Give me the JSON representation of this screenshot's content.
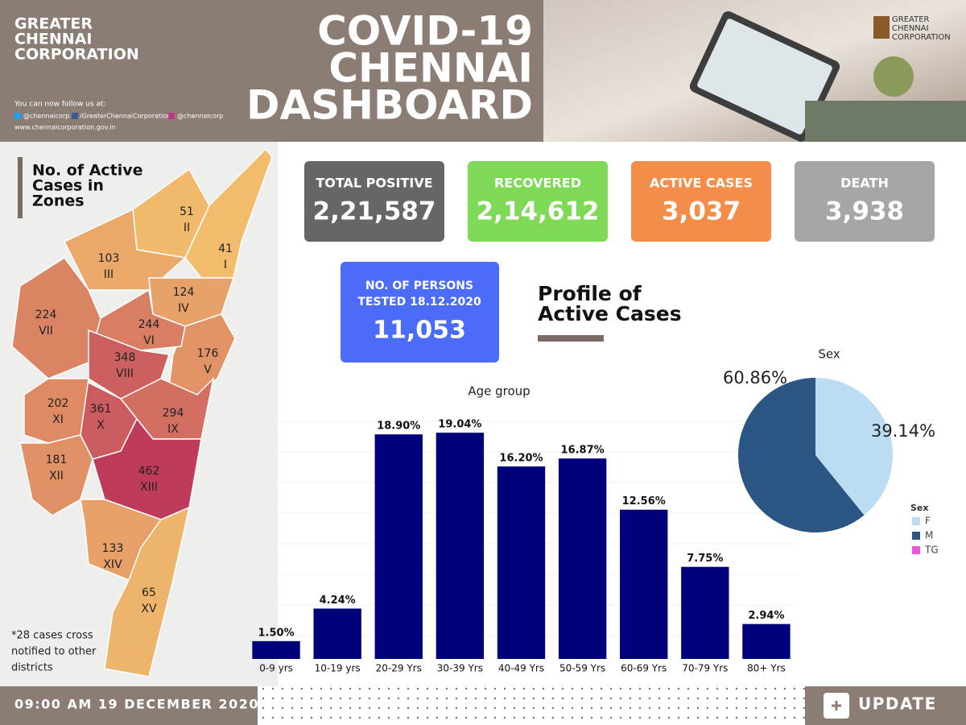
{
  "header": {
    "org": [
      "GREATER",
      "CHENNAI",
      "CORPORATION"
    ],
    "follow": "You can now follow us at:",
    "twitter": "@chennaicorp",
    "facebook": "/GreaterChennaiCorporation",
    "instagram": "@chennaicorp",
    "website": "www.chennaicorporation.gov.in",
    "title": [
      "COVID-19",
      "CHENNAI",
      "DASHBOARD"
    ],
    "logo": [
      "GREATER",
      "CHENNAI",
      "CORPORATION"
    ]
  },
  "map": {
    "title": [
      "No. of Active",
      "Cases in",
      "Zones"
    ],
    "zones": [
      {
        "value": 41,
        "label": "I"
      },
      {
        "value": 51,
        "label": "II"
      },
      {
        "value": 103,
        "label": "III"
      },
      {
        "value": 124,
        "label": "IV"
      },
      {
        "value": 176,
        "label": "V"
      },
      {
        "value": 244,
        "label": "VI"
      },
      {
        "value": 224,
        "label": "VII"
      },
      {
        "value": 348,
        "label": "VIII"
      },
      {
        "value": 294,
        "label": "IX"
      },
      {
        "value": 361,
        "label": "X"
      },
      {
        "value": 202,
        "label": "XI"
      },
      {
        "value": 181,
        "label": "XII"
      },
      {
        "value": 462,
        "label": "XIII"
      },
      {
        "value": 133,
        "label": "XIV"
      },
      {
        "value": 65,
        "label": "XV"
      }
    ],
    "note": [
      "*28 cases cross",
      "notified to other",
      "districts"
    ]
  },
  "stats": [
    {
      "label": "TOTAL POSITIVE",
      "value": "2,21,587"
    },
    {
      "label": "RECOVERED",
      "value": "2,14,612"
    },
    {
      "label": "ACTIVE CASES",
      "value": "3,037"
    },
    {
      "label": "DEATH",
      "value": "3,938"
    }
  ],
  "tested": {
    "label": [
      "NO. OF PERSONS",
      "TESTED 18.12.2020"
    ],
    "value": "11,053"
  },
  "profile_title": [
    "Profile of",
    "Active Cases"
  ],
  "chart_data": [
    {
      "type": "bar",
      "title": "Age group",
      "categories": [
        "0-9 yrs",
        "10-19 yrs",
        "20-29 Yrs",
        "30-39 Yrs",
        "40-49 Yrs",
        "50-59 Yrs",
        "60-69 Yrs",
        "70-79 Yrs",
        "80+ Yrs"
      ],
      "values": [
        1.5,
        4.24,
        18.9,
        19.04,
        16.2,
        16.87,
        12.56,
        7.75,
        2.94
      ],
      "value_labels": [
        "1.50%",
        "4.24%",
        "18.90%",
        "19.04%",
        "16.20%",
        "16.87%",
        "12.56%",
        "7.75%",
        "2.94%"
      ],
      "color": "#00007a",
      "ylim": [
        0,
        20
      ]
    },
    {
      "type": "pie",
      "title": "Sex",
      "legend_title": "Sex",
      "categories": [
        "F",
        "M",
        "TG"
      ],
      "values": [
        39.14,
        60.86,
        0
      ],
      "value_labels": [
        "39.14%",
        "60.86%",
        null
      ],
      "colors": [
        "#bcdcf1",
        "#2b5582",
        "#f052e4"
      ]
    }
  ],
  "footer": {
    "timestamp": "09:00 AM 19 DECEMBER 2020",
    "update": "UPDATE"
  }
}
